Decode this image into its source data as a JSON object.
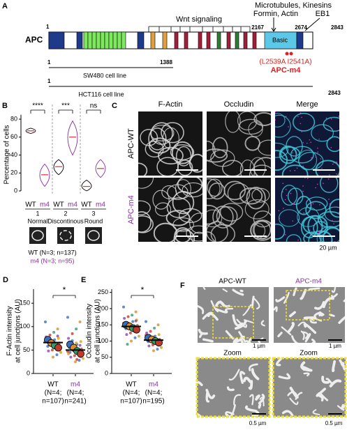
{
  "panel_a": {
    "letter": "A",
    "gene": "APC",
    "start": "1",
    "wnt": "Wnt signaling",
    "partners": "Microtubules, Kinesins",
    "partners2": "Formin, Actin",
    "eb1": "EB1",
    "pos1": "2167",
    "pos2": "2674",
    "pos3": "2843",
    "basic": "Basic",
    "mutation": "(L2539A I2541A)",
    "mutant": "APC-m4",
    "sw_start": "1",
    "sw_end": "1388",
    "sw_label": "SW480 cell line",
    "hct_start": "1",
    "hct_label": "HCT116 cell line",
    "hct_end": "2843"
  },
  "panel_b": {
    "letter": "B",
    "ylabel": "Percentage of cells",
    "ylim": [
      0,
      85
    ],
    "yticks": [
      0,
      20,
      40,
      60,
      80
    ],
    "wt_color": "#000000",
    "m4_color": "#8b2f9e",
    "median_color": "#e03030",
    "groups": [
      {
        "number": "1",
        "name": "Normal",
        "significance": "****",
        "violins": [
          {
            "label": "WT",
            "min": 64,
            "median": 67,
            "max": 70
          },
          {
            "label": "m4",
            "min": 5,
            "median": 18,
            "max": 30
          }
        ]
      },
      {
        "number": "2",
        "name": "Discontinous",
        "significance": "***",
        "violins": [
          {
            "label": "WT",
            "min": 18,
            "median": 27,
            "max": 35
          },
          {
            "label": "m4",
            "min": 40,
            "median": 60,
            "max": 78
          }
        ]
      },
      {
        "number": "3",
        "name": "Round",
        "significance": "ns",
        "violins": [
          {
            "label": "WT",
            "min": 0,
            "median": 5,
            "max": 12
          },
          {
            "label": "m4",
            "min": 15,
            "median": 25,
            "max": 35
          }
        ]
      }
    ],
    "legend": [
      "WT (N=3; n=137)",
      "m4 (N=3; n=95)"
    ]
  },
  "panel_c": {
    "letter": "C",
    "columns": [
      "F-Actin",
      "Occludin",
      "Merge"
    ],
    "rows": [
      "APC-WT",
      "APC-m4"
    ],
    "scale": "20 µm"
  },
  "panel_d": {
    "letter": "D",
    "ylabel": [
      "F-Actin intensity",
      "at cell junctions (AU)"
    ],
    "ylim": [
      0,
      180
    ],
    "yticks": [
      0,
      50,
      100,
      150
    ],
    "significance": "*",
    "groups": [
      {
        "name": "WT",
        "note": "(N=4;",
        "n": "n=107)",
        "mean": 66,
        "replicate_means": [
          72,
          65,
          60,
          55
        ],
        "points": [
          110,
          95,
          88,
          82,
          78,
          75,
          72,
          70,
          68,
          65,
          62,
          60,
          58,
          55,
          52,
          50,
          48,
          45,
          40,
          35,
          62,
          70,
          80,
          66
        ]
      },
      {
        "name": "m4",
        "note": "(N=4;",
        "n": "n=241)",
        "mean": 50,
        "replicate_means": [
          62,
          55,
          48,
          42
        ],
        "points": [
          120,
          110,
          95,
          85,
          75,
          68,
          62,
          58,
          55,
          52,
          50,
          48,
          45,
          43,
          40,
          38,
          35,
          32,
          28,
          25,
          55,
          47,
          60,
          65,
          70,
          42,
          36,
          30
        ]
      }
    ]
  },
  "panel_e": {
    "letter": "E",
    "ylabel": [
      "Occludin intensity",
      "at cell junctions (AU)"
    ],
    "ylim": [
      0,
      260
    ],
    "yticks": [
      0,
      50,
      100,
      150,
      200,
      250
    ],
    "significance": "*",
    "groups": [
      {
        "name": "WT",
        "note": "(N=4;",
        "n": "n=107)",
        "mean": 145,
        "replicate_means": [
          150,
          145,
          140,
          135
        ],
        "points": [
          205,
          190,
          180,
          175,
          170,
          165,
          160,
          155,
          150,
          148,
          145,
          140,
          138,
          135,
          130,
          125,
          120,
          115,
          110,
          100,
          90,
          155,
          162,
          142
        ]
      },
      {
        "name": "m4",
        "note": "(N=4;",
        "n": "n=195)",
        "mean": 103,
        "replicate_means": [
          110,
          105,
          100,
          95
        ],
        "points": [
          160,
          150,
          140,
          130,
          125,
          120,
          115,
          110,
          108,
          105,
          102,
          100,
          98,
          95,
          92,
          88,
          85,
          80,
          75,
          70,
          112,
          118,
          96,
          104
        ]
      }
    ]
  },
  "panel_f": {
    "letter": "F",
    "titles": [
      "APC-WT",
      "APC-m4"
    ],
    "scale": [
      "1 µm",
      "1 µm"
    ],
    "zoom": [
      "Zoom",
      "Zoom"
    ],
    "zoom_scale": [
      "0.5 µm",
      "0.5 µm"
    ]
  }
}
